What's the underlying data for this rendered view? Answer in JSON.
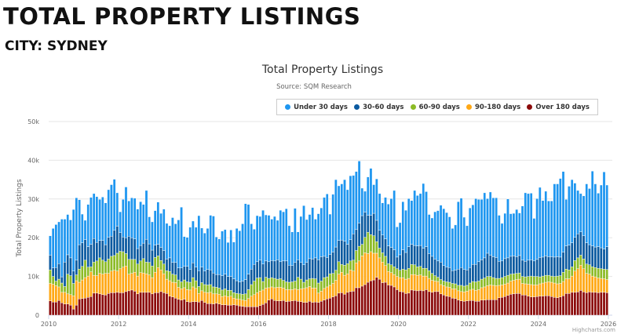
{
  "header": {
    "title": "TOTAL PROPERTY LISTINGS",
    "city": "CITY: SYDNEY"
  },
  "credits": "Highcharts.com",
  "chart_data": {
    "type": "bar",
    "stacked": true,
    "title": "Total Property Listings",
    "subtitle": "Source: SQM Research",
    "xlabel": "",
    "ylabel": "Total Property Listings",
    "ylim": [
      0,
      50000
    ],
    "yticks": [
      "0",
      "10k",
      "20k",
      "30k",
      "40k",
      "50k"
    ],
    "xticks": [
      "2010",
      "2012",
      "2014",
      "2016",
      "2018",
      "2020",
      "2022",
      "2024",
      "2026"
    ],
    "x_start": "2010-01",
    "x_end": "2025-12",
    "frequency": "monthly",
    "unit": "thousands",
    "grid": true,
    "legend_position": "top-right",
    "series": [
      {
        "name": "Under 30 days",
        "color": "#1e96f0",
        "values": [
          5.0,
          10.2,
          11.1,
          10.8,
          14.9,
          11.1,
          10.4,
          9.8,
          15.9,
          16.1,
          11.6,
          7.4,
          5.0,
          10.9,
          12.1,
          11.6,
          11.8,
          10.6,
          11.2,
          10.8,
          12.3,
          13.3,
          13.2,
          8.6,
          5.4,
          9.7,
          13.1,
          9.1,
          10.3,
          10.5,
          10.2,
          11.3,
          10.0,
          12.6,
          7.0,
          7.3,
          8.9,
          10.9,
          8.8,
          10.7,
          9.2,
          8.3,
          11.6,
          10.0,
          12.4,
          15.7,
          7.7,
          7.5,
          10.9,
          10.8,
          10.3,
          14.2,
          10.1,
          9.8,
          10.6,
          14.1,
          14.7,
          9.7,
          9.2,
          11.5,
          11.5,
          8.8,
          12.0,
          9.5,
          13.5,
          13.2,
          14.8,
          19.6,
          18.0,
          11.7,
          9.1,
          11.9,
          11.3,
          13.9,
          11.9,
          12.0,
          10.7,
          11.5,
          10.2,
          13.3,
          12.7,
          13.5,
          10.2,
          8.7,
          14.0,
          7.2,
          11.9,
          15.3,
          11.1,
          11.4,
          13.3,
          10.0,
          11.9,
          12.6,
          15.2,
          16.4,
          10.4,
          14.9,
          17.4,
          14.1,
          14.5,
          15.9,
          14.1,
          16.5,
          15.1,
          15.0,
          16.0,
          7.1,
          5.4,
          9.9,
          12.1,
          7.4,
          10.7,
          9.5,
          8.3,
          10.7,
          10.8,
          12.6,
          15.3,
          7.8,
          8.3,
          12.4,
          10.9,
          12.4,
          11.3,
          14.2,
          13.0,
          13.4,
          16.7,
          14.2,
          10.1,
          9.9,
          12.2,
          13.0,
          14.7,
          14.7,
          14.1,
          13.1,
          10.9,
          11.7,
          17.4,
          17.9,
          13.5,
          11.4,
          15.4,
          15.4,
          17.0,
          16.1,
          15.6,
          16.8,
          14.1,
          16.3,
          15.2,
          15.4,
          11.9,
          9.7,
          11.7,
          15.2,
          11.0,
          11.0,
          12.2,
          11.0,
          14.0,
          17.7,
          17.2,
          17.2,
          11.0,
          15.7,
          18.1,
          14.6,
          16.7,
          14.4,
          14.4,
          18.9,
          18.8,
          20.3,
          20.8,
          12.0,
          15.2,
          16.3,
          14.0,
          11.2,
          9.9,
          10.3,
          15.2,
          14.5,
          19.3,
          16.3,
          13.8,
          16.2,
          19.9,
          15.9
        ]
      },
      {
        "name": "30-60 days",
        "color": "#0b5aa0",
        "values": [
          3.8,
          2.2,
          3.5,
          4.0,
          1.6,
          6.3,
          5.0,
          4.6,
          3.2,
          3.8,
          6.3,
          6.1,
          5.3,
          5.3,
          5.8,
          6.1,
          4.8,
          4.5,
          5.1,
          4.4,
          5.6,
          5.2,
          6.5,
          7.0,
          4.8,
          3.8,
          4.1,
          6.0,
          5.6,
          5.3,
          4.0,
          4.0,
          4.0,
          5.9,
          4.8,
          4.1,
          3.2,
          3.0,
          3.4,
          3.5,
          3.0,
          3.5,
          3.0,
          3.2,
          3.1,
          3.6,
          3.5,
          4.0,
          3.3,
          3.8,
          3.5,
          4.1,
          4.0,
          3.5,
          4.0,
          3.8,
          3.6,
          3.3,
          3.5,
          3.7,
          3.8,
          3.6,
          3.6,
          3.6,
          3.3,
          3.1,
          3.4,
          3.7,
          4.0,
          4.0,
          4.3,
          4.2,
          4.5,
          4.5,
          4.2,
          4.3,
          4.4,
          4.5,
          5.0,
          4.4,
          5.0,
          5.4,
          4.4,
          4.2,
          4.8,
          4.5,
          4.3,
          4.5,
          4.5,
          5.2,
          5.0,
          5.4,
          6.0,
          6.3,
          5.5,
          5.0,
          5.0,
          5.5,
          6.0,
          5.5,
          6.3,
          6.2,
          5.0,
          5.5,
          6.8,
          5.4,
          6.0,
          7.4,
          6.5,
          4.4,
          5.0,
          5.8,
          5.5,
          4.6,
          4.6,
          4.5,
          4.6,
          4.5,
          4.4,
          3.0,
          4.0,
          5.0,
          4.5,
          5.6,
          5.2,
          5.0,
          5.4,
          5.4,
          5.2,
          5.6,
          4.4,
          4.4,
          4.3,
          4.2,
          4.5,
          4.0,
          3.8,
          3.8,
          3.3,
          3.5,
          4.2,
          4.6,
          4.3,
          4.0,
          4.0,
          4.4,
          4.5,
          5.0,
          5.0,
          5.2,
          6.0,
          5.5,
          5.4,
          5.4,
          4.4,
          4.3,
          4.6,
          4.5,
          4.6,
          4.6,
          4.3,
          4.5,
          4.2,
          4.0,
          4.2,
          4.2,
          4.0,
          4.4,
          5.0,
          4.9,
          5.0,
          4.8,
          5.0,
          5.0,
          5.0,
          4.8,
          5.2,
          6.0,
          6.4,
          6.2,
          6.0,
          6.2,
          6.0,
          6.0,
          5.5,
          5.2,
          5.4,
          5.3,
          5.6,
          5.4,
          5.2,
          5.9
        ]
      },
      {
        "name": "60-90 days",
        "color": "#8cbb26",
        "values": [
          3.5,
          2.0,
          1.2,
          2.0,
          2.4,
          1.5,
          5.1,
          4.9,
          3.2,
          1.5,
          3.4,
          3.5,
          4.5,
          2.3,
          1.3,
          3.4,
          3.8,
          4.0,
          3.6,
          3.0,
          3.7,
          3.8,
          3.8,
          4.6,
          4.5,
          4.0,
          3.2,
          3.8,
          3.6,
          3.3,
          3.1,
          3.0,
          3.7,
          3.0,
          3.2,
          3.0,
          3.8,
          3.0,
          2.4,
          2.5,
          2.2,
          2.4,
          2.1,
          2.0,
          1.9,
          1.8,
          2.0,
          2.0,
          2.0,
          2.4,
          2.0,
          1.8,
          2.1,
          2.0,
          2.0,
          2.0,
          1.8,
          1.7,
          1.6,
          1.7,
          1.8,
          1.6,
          1.5,
          1.4,
          1.4,
          1.4,
          1.5,
          1.7,
          2.3,
          3.0,
          3.5,
          3.8,
          3.5,
          2.2,
          2.8,
          2.4,
          2.4,
          2.4,
          2.1,
          2.2,
          2.0,
          2.0,
          1.9,
          2.0,
          2.0,
          3.2,
          2.5,
          1.6,
          2.0,
          2.0,
          2.5,
          2.4,
          2.6,
          2.6,
          2.8,
          2.6,
          3.0,
          2.6,
          2.6,
          3.2,
          2.0,
          2.6,
          2.6,
          2.3,
          2.8,
          3.2,
          3.8,
          3.0,
          4.0,
          5.5,
          4.4,
          4.5,
          3.0,
          2.5,
          2.4,
          2.4,
          2.0,
          2.0,
          2.0,
          2.0,
          1.9,
          2.2,
          2.4,
          2.6,
          2.6,
          2.5,
          2.2,
          2.2,
          2.0,
          2.0,
          2.0,
          1.8,
          1.4,
          1.1,
          1.3,
          1.2,
          1.3,
          1.3,
          1.4,
          1.3,
          1.4,
          1.6,
          1.5,
          1.5,
          1.8,
          2.0,
          2.2,
          2.2,
          2.2,
          2.3,
          2.4,
          2.2,
          2.0,
          1.9,
          1.8,
          1.9,
          2.0,
          2.0,
          1.8,
          1.7,
          1.6,
          1.6,
          1.8,
          1.8,
          2.0,
          2.2,
          2.2,
          2.2,
          1.8,
          1.8,
          1.8,
          1.7,
          1.6,
          1.7,
          2.0,
          2.0,
          2.4,
          2.5,
          2.3,
          2.4,
          2.7,
          2.8,
          2.6,
          2.5,
          2.4,
          2.4,
          2.4,
          2.4,
          2.5,
          2.5,
          2.5,
          2.6
        ]
      },
      {
        "name": "90-180 days",
        "color": "#ffa815",
        "values": [
          4.5,
          4.6,
          4.2,
          3.5,
          2.7,
          3.0,
          2.6,
          2.7,
          3.4,
          6.3,
          4.3,
          4.8,
          5.3,
          5.5,
          6.4,
          4.6,
          4.5,
          5.3,
          5.3,
          5.6,
          5.2,
          5.6,
          5.8,
          5.5,
          6.2,
          6.6,
          6.6,
          4.3,
          4.3,
          4.9,
          4.6,
          5.1,
          5.0,
          4.8,
          4.5,
          4.2,
          5.3,
          6.5,
          5.6,
          4.9,
          3.7,
          4.0,
          3.8,
          4.0,
          3.1,
          2.9,
          3.0,
          3.1,
          3.1,
          3.8,
          3.4,
          2.2,
          2.5,
          2.6,
          2.8,
          2.9,
          2.6,
          2.4,
          2.5,
          2.1,
          2.3,
          2.2,
          2.3,
          1.7,
          1.6,
          1.7,
          1.6,
          1.6,
          2.1,
          2.7,
          3.1,
          3.6,
          3.7,
          3.7,
          3.8,
          3.2,
          3.1,
          3.3,
          3.5,
          3.5,
          3.2,
          3.1,
          3.0,
          2.9,
          3.0,
          3.0,
          3.3,
          3.6,
          3.8,
          3.8,
          3.7,
          3.6,
          2.4,
          2.6,
          3.0,
          3.1,
          3.3,
          3.5,
          4.0,
          4.9,
          5.3,
          4.9,
          4.8,
          5.6,
          5.2,
          6.4,
          6.9,
          7.8,
          8.2,
          7.4,
          7.5,
          6.9,
          6.2,
          5.5,
          5.3,
          4.3,
          3.5,
          3.3,
          3.2,
          3.4,
          3.6,
          3.7,
          3.7,
          3.8,
          4.0,
          4.1,
          4.0,
          4.0,
          3.8,
          3.5,
          3.4,
          3.1,
          2.7,
          2.6,
          2.4,
          2.4,
          2.4,
          2.4,
          2.4,
          2.5,
          2.4,
          2.4,
          2.4,
          2.5,
          2.7,
          2.9,
          2.8,
          3.0,
          3.2,
          3.4,
          3.6,
          3.8,
          3.7,
          3.6,
          3.2,
          3.2,
          3.2,
          3.2,
          3.4,
          3.5,
          3.6,
          3.7,
          3.0,
          2.9,
          3.1,
          3.2,
          3.1,
          3.0,
          3.2,
          3.4,
          3.5,
          3.6,
          3.7,
          3.7,
          3.6,
          3.5,
          3.7,
          3.8,
          3.8,
          4.2,
          5.5,
          6.0,
          6.5,
          6.0,
          5.0,
          4.6,
          4.2,
          4.0,
          3.8,
          3.6,
          3.5,
          3.4
        ]
      },
      {
        "name": "Over 180 days",
        "color": "#8b0a0a",
        "values": [
          3.7,
          3.4,
          3.4,
          3.8,
          3.2,
          2.9,
          2.9,
          2.6,
          1.6,
          2.6,
          4.2,
          4.3,
          4.4,
          4.6,
          4.8,
          5.7,
          5.7,
          5.5,
          5.3,
          5.2,
          5.6,
          5.8,
          5.8,
          5.9,
          5.8,
          5.8,
          6.1,
          6.3,
          6.5,
          6.2,
          5.5,
          5.9,
          5.9,
          5.9,
          5.9,
          5.5,
          5.8,
          5.8,
          6.1,
          5.8,
          5.6,
          4.9,
          4.7,
          4.4,
          4.1,
          3.9,
          4.1,
          3.5,
          3.4,
          3.5,
          3.5,
          3.4,
          3.8,
          3.3,
          3.0,
          3.0,
          2.9,
          3.1,
          2.9,
          2.7,
          2.7,
          2.6,
          2.6,
          2.7,
          2.6,
          2.4,
          2.3,
          2.2,
          2.2,
          2.2,
          2.2,
          2.2,
          2.5,
          2.8,
          3.2,
          3.9,
          4.2,
          3.8,
          3.7,
          3.7,
          3.8,
          3.5,
          3.6,
          3.7,
          3.8,
          3.6,
          3.5,
          3.3,
          3.3,
          3.6,
          3.3,
          3.4,
          3.3,
          3.6,
          3.9,
          4.2,
          4.4,
          4.7,
          5.0,
          5.7,
          5.8,
          5.4,
          5.9,
          6.1,
          6.2,
          7.1,
          7.1,
          7.5,
          7.9,
          8.5,
          8.9,
          9.1,
          9.8,
          9.3,
          8.4,
          8.5,
          7.8,
          7.7,
          7.3,
          6.6,
          6.1,
          6.0,
          5.6,
          5.7,
          6.5,
          6.4,
          6.3,
          6.4,
          6.3,
          6.6,
          6.1,
          5.9,
          6.1,
          6.1,
          5.5,
          5.2,
          4.9,
          4.8,
          4.4,
          4.3,
          3.9,
          3.7,
          3.6,
          3.7,
          3.8,
          3.8,
          3.6,
          3.6,
          3.9,
          3.9,
          4.0,
          4.0,
          4.0,
          4.0,
          4.5,
          4.6,
          4.8,
          5.1,
          5.4,
          5.5,
          5.6,
          5.6,
          5.2,
          5.2,
          4.9,
          4.7,
          4.7,
          4.8,
          4.9,
          4.9,
          5.0,
          5.0,
          4.8,
          4.6,
          4.5,
          4.7,
          5.0,
          5.6,
          5.6,
          5.9,
          5.9,
          6.0,
          6.4,
          6.0,
          5.8,
          6.0,
          5.9,
          5.9,
          5.8,
          5.9,
          5.9,
          5.8
        ]
      }
    ]
  }
}
